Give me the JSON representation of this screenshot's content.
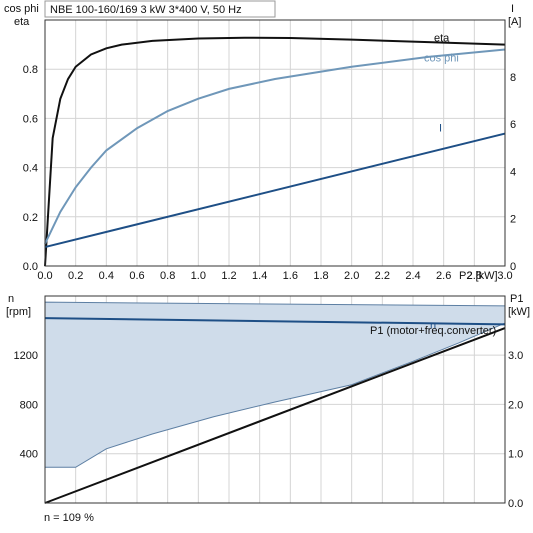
{
  "chart_data": [
    {
      "type": "line",
      "title": "NBE 100-160/169   3 kW   3*400 V, 50 Hz",
      "xlabel": "P2 [kW]",
      "ylabel_left_1": "cos phi",
      "ylabel_left_2": "eta",
      "ylabel_right_1": "I",
      "ylabel_right_2": "[A]",
      "xlim": [
        0,
        3.0
      ],
      "ylim_left": [
        0,
        1.0
      ],
      "ylim_right": [
        0,
        10.4
      ],
      "x_ticks": [
        "0.0",
        "0.2",
        "0.4",
        "0.6",
        "0.8",
        "1.0",
        "1.2",
        "1.4",
        "1.6",
        "1.8",
        "2.0",
        "2.2",
        "2.4",
        "2.6",
        "2.8",
        "3.0"
      ],
      "y_ticks_left": [
        "0.0",
        "0.2",
        "0.4",
        "0.6",
        "0.8"
      ],
      "y_ticks_right": [
        "0",
        "2",
        "4",
        "6",
        "8"
      ],
      "series": [
        {
          "name": "eta",
          "axis": "left",
          "color": "#111111",
          "x": [
            0.0,
            0.05,
            0.1,
            0.15,
            0.2,
            0.3,
            0.4,
            0.5,
            0.7,
            1.0,
            1.3,
            1.6,
            2.0,
            2.5,
            3.0
          ],
          "y": [
            0.0,
            0.52,
            0.68,
            0.76,
            0.81,
            0.86,
            0.885,
            0.9,
            0.915,
            0.925,
            0.928,
            0.927,
            0.92,
            0.91,
            0.9
          ]
        },
        {
          "name": "cos phi",
          "axis": "left",
          "color": "#6f97b9",
          "x": [
            0.0,
            0.1,
            0.2,
            0.3,
            0.4,
            0.6,
            0.8,
            1.0,
            1.2,
            1.5,
            2.0,
            2.5,
            3.0
          ],
          "y": [
            0.09,
            0.22,
            0.32,
            0.4,
            0.47,
            0.56,
            0.63,
            0.68,
            0.72,
            0.76,
            0.81,
            0.85,
            0.88
          ]
        },
        {
          "name": "I",
          "axis": "right",
          "color": "#1e4f86",
          "x": [
            0.0,
            3.0
          ],
          "y": [
            0.8,
            5.6
          ]
        }
      ]
    },
    {
      "type": "area",
      "ylabel_left_1": "n",
      "ylabel_left_2": "[rpm]",
      "ylabel_right_1": "P1",
      "ylabel_right_2": "[kW]",
      "xlim": [
        0,
        3.0
      ],
      "ylim_left": [
        0,
        1680
      ],
      "ylim_right": [
        0,
        4.2
      ],
      "y_ticks_left": [
        "400",
        "800",
        "1200"
      ],
      "y_ticks_right": [
        "0.0",
        "1.0",
        "2.0",
        "3.0"
      ],
      "annotation": "n = 109 %",
      "band": {
        "color": "#cfdcea",
        "upper": {
          "x": [
            0.0,
            3.0
          ],
          "y": [
            1630,
            1600
          ]
        },
        "lower": {
          "x": [
            0.0,
            0.2,
            0.4,
            0.7,
            1.1,
            1.5,
            2.0,
            2.4,
            2.7,
            3.0
          ],
          "y": [
            290,
            290,
            440,
            560,
            700,
            820,
            960,
            1150,
            1300,
            1460
          ]
        }
      },
      "series": [
        {
          "name": "n",
          "axis": "left",
          "color": "#1e4f86",
          "x": [
            0.0,
            3.0
          ],
          "y": [
            1500,
            1450
          ]
        },
        {
          "name": "P1 (motor+freq.converter)",
          "axis": "right",
          "color": "#111111",
          "x": [
            0.0,
            3.0
          ],
          "y": [
            0.0,
            3.55
          ]
        }
      ]
    }
  ]
}
